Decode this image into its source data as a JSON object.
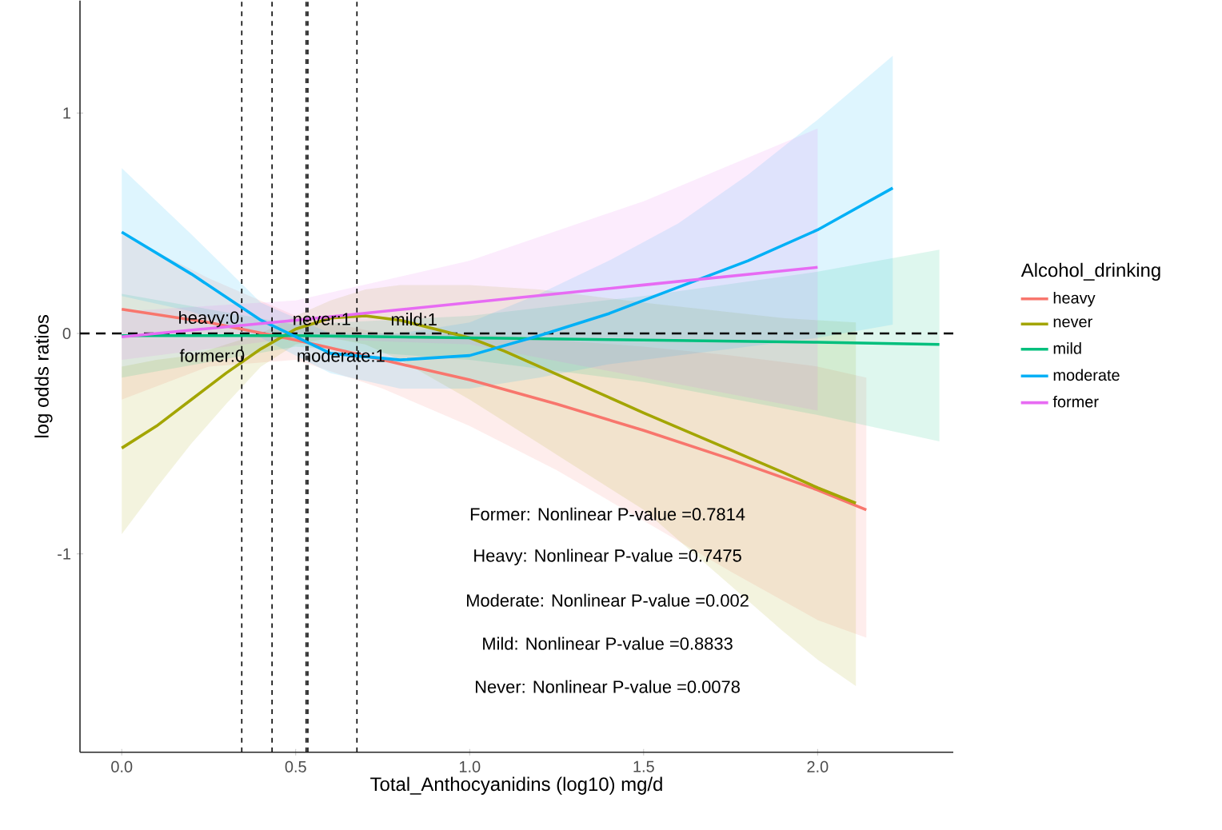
{
  "chart_data": {
    "type": "line",
    "xlabel": "Total_Anthocyanidins (log10) mg/d",
    "ylabel": "log odds ratios",
    "legend_title": "Alcohol_drinking",
    "legend": "right",
    "xlim": [
      -0.12,
      2.39
    ],
    "ylim": [
      -1.9,
      1.51
    ],
    "xticks": [
      {
        "value": 0,
        "label": "0.0"
      },
      {
        "value": 0.5,
        "label": "0.5"
      },
      {
        "value": 1,
        "label": "1.0"
      },
      {
        "value": 1.5,
        "label": "1.5"
      },
      {
        "value": 2,
        "label": "2.0"
      }
    ],
    "yticks": [
      -1,
      0,
      1
    ],
    "series": [
      {
        "name": "heavy",
        "color": "#F8766D",
        "x": [
          0,
          0.25,
          0.5,
          0.75,
          1.0,
          1.25,
          1.5,
          1.75,
          2.0,
          2.14
        ],
        "values": [
          0.11,
          0.05,
          -0.03,
          -0.12,
          -0.21,
          -0.32,
          -0.44,
          -0.57,
          -0.71,
          -0.8
        ],
        "lower": [
          -0.3,
          -0.15,
          -0.12,
          -0.25,
          -0.42,
          -0.62,
          -0.85,
          -1.08,
          -1.3,
          -1.38
        ],
        "upper": [
          0.45,
          0.25,
          0.08,
          0.0,
          0.0,
          -0.03,
          -0.06,
          -0.1,
          -0.15,
          -0.2
        ]
      },
      {
        "name": "never",
        "color": "#A3A500",
        "x": [
          0,
          0.1,
          0.2,
          0.3,
          0.4,
          0.5,
          0.6,
          0.7,
          0.8,
          1.0,
          1.1,
          1.2,
          1.3,
          1.4,
          1.5,
          1.9,
          2.0,
          2.11
        ],
        "values": [
          -0.52,
          -0.42,
          -0.3,
          -0.18,
          -0.07,
          0.02,
          0.07,
          0.08,
          0.06,
          -0.02,
          -0.08,
          -0.15,
          -0.22,
          -0.29,
          -0.36,
          -0.63,
          -0.7,
          -0.77
        ],
        "lower": [
          -0.91,
          -0.7,
          -0.5,
          -0.32,
          -0.15,
          -0.05,
          -0.02,
          -0.05,
          -0.12,
          -0.3,
          -0.4,
          -0.5,
          -0.6,
          -0.7,
          -0.8,
          -1.35,
          -1.48,
          -1.6
        ],
        "upper": [
          -0.15,
          -0.12,
          -0.1,
          -0.05,
          0.0,
          0.08,
          0.15,
          0.2,
          0.22,
          0.22,
          0.21,
          0.2,
          0.18,
          0.16,
          0.14,
          0.07,
          0.06,
          0.05
        ]
      },
      {
        "name": "mild",
        "color": "#00BF7D",
        "x": [
          0,
          0.5,
          1.0,
          1.5,
          2.0,
          2.35
        ],
        "values": [
          -0.01,
          -0.01,
          -0.02,
          -0.03,
          -0.04,
          -0.05
        ],
        "lower": [
          -0.2,
          -0.06,
          -0.12,
          -0.22,
          -0.37,
          -0.49
        ],
        "upper": [
          0.18,
          0.04,
          0.08,
          0.17,
          0.28,
          0.38
        ]
      },
      {
        "name": "moderate",
        "color": "#00B0F6",
        "x": [
          0,
          0.2,
          0.4,
          0.6,
          0.8,
          1.0,
          1.2,
          1.4,
          1.6,
          1.8,
          2.0,
          2.216
        ],
        "values": [
          0.46,
          0.27,
          0.06,
          -0.09,
          -0.12,
          -0.1,
          -0.01,
          0.09,
          0.21,
          0.33,
          0.47,
          0.66
        ],
        "lower": [
          0.17,
          0.1,
          -0.02,
          -0.18,
          -0.25,
          -0.25,
          -0.2,
          -0.14,
          -0.1,
          -0.06,
          -0.02,
          0.04
        ],
        "upper": [
          0.75,
          0.45,
          0.14,
          0.0,
          0.0,
          0.05,
          0.18,
          0.33,
          0.5,
          0.72,
          0.97,
          1.26
        ]
      },
      {
        "name": "former",
        "color": "#E76BF3",
        "x": [
          0,
          0.5,
          1.0,
          1.5,
          2.0
        ],
        "values": [
          -0.015,
          0.06,
          0.14,
          0.22,
          0.3
        ],
        "lower": [
          -0.12,
          -0.02,
          -0.05,
          -0.2,
          -0.35
        ],
        "upper": [
          0.1,
          0.15,
          0.33,
          0.6,
          0.93
        ]
      }
    ],
    "ref_lines": [
      {
        "axis": "y",
        "value": 0,
        "line_style": "dashed"
      },
      {
        "axis": "x",
        "value": 0.345,
        "line_style": "dashed"
      },
      {
        "axis": "x",
        "value": 0.432,
        "line_style": "dashed"
      },
      {
        "axis": "x",
        "value": 0.53,
        "line_style": "dashed"
      },
      {
        "axis": "x",
        "value": 0.535,
        "line_style": "dashed"
      },
      {
        "axis": "x",
        "value": 0.676,
        "line_style": "dashed"
      }
    ],
    "annotations": [
      {
        "text": "heavy:0",
        "x": 0.25,
        "y": 0.065
      },
      {
        "text": "never:1",
        "x": 0.575,
        "y": 0.065
      },
      {
        "text": "mild:1",
        "x": 0.84,
        "y": 0.065
      },
      {
        "text": "former:0",
        "x": 0.26,
        "y": -0.1
      },
      {
        "text": "moderate:1",
        "x": 0.63,
        "y": -0.1
      },
      "Former: Nonlinear P-value =0.7814",
      "Heavy: Nonlinear P-value =0.7475",
      "Moderate: Nonlinear P-value =0.002",
      "Mild: Nonlinear P-value =0.8833",
      "Never: Nonlinear P-value =0.0078"
    ]
  }
}
